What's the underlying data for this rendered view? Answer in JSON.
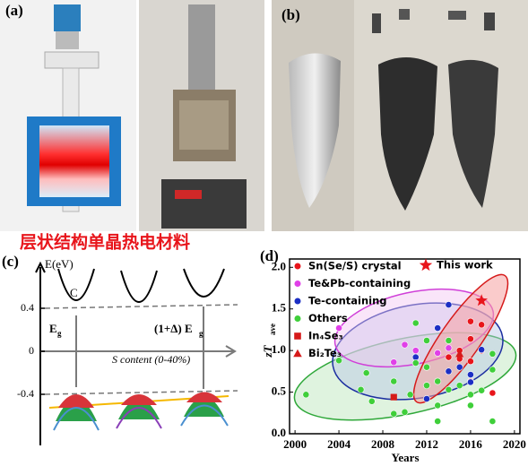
{
  "panel_a": {
    "label": "(a)"
  },
  "panel_b": {
    "label": "(b)"
  },
  "caption": "层状结构单晶热电材料",
  "panel_c": {
    "label": "(c)",
    "axis_label": "E(eV)",
    "ticks": [
      0.4,
      0,
      -0.4
    ],
    "band_label": "C",
    "gap_label": "E",
    "gap_sub": "g",
    "gap2_label": "(1+Δ) E",
    "gap2_sub": "g",
    "x_note": "S content (0-40%)"
  },
  "chart_data": {
    "type": "scatter",
    "label": "(d)",
    "x_label": "Years",
    "y_label": "zT",
    "y_label_sub": "ave",
    "xlim": [
      1999.5,
      2020.5
    ],
    "xticks": [
      2000,
      2004,
      2008,
      2012,
      2016,
      2020
    ],
    "ylim": [
      0,
      2.1
    ],
    "yticks": [
      {
        "value": 0,
        "label": "0.0"
      },
      0.5,
      {
        "value": 1,
        "label": "1.0"
      },
      1.5,
      {
        "value": 2,
        "label": "2.0"
      }
    ],
    "series": [
      {
        "name": "Sn(Se/S) crystal",
        "color": "#e8151b",
        "marker": "circle",
        "x": [
          2014,
          2015,
          2016,
          2016,
          2017,
          2018,
          2016,
          2016,
          2015,
          2017
        ],
        "values": [
          0.92,
          0.9,
          1.35,
          1.14,
          1.31,
          0.49,
          0.87,
          0.63,
          1.0,
          1.0
        ]
      },
      {
        "name": "Te&Pb-containing",
        "color": "#e040e8",
        "marker": "circle",
        "x": [
          2004,
          2013,
          2014,
          2009,
          2010,
          2011
        ],
        "values": [
          1.27,
          0.97,
          1.03,
          0.86,
          1.07,
          1.0
        ]
      },
      {
        "name": "Te-containing",
        "color": "#1c2fc4",
        "marker": "circle",
        "x": [
          2012,
          2011,
          2013,
          2014,
          2014,
          2015,
          2016,
          2017,
          2016
        ],
        "values": [
          0.42,
          0.92,
          1.27,
          1.55,
          0.75,
          0.8,
          0.62,
          1.01,
          0.71
        ]
      },
      {
        "name": "Others",
        "color": "#3fcf3a",
        "marker": "circle",
        "x": [
          2001,
          2004,
          2006,
          2006.5,
          2007,
          2009,
          2009,
          2010,
          2010.5,
          2011,
          2011,
          2012,
          2012,
          2012,
          2013,
          2013,
          2013,
          2014,
          2014,
          2015,
          2016,
          2016,
          2017,
          2018,
          2018,
          2018
        ],
        "values": [
          0.47,
          0.88,
          0.53,
          0.73,
          0.39,
          0.63,
          0.24,
          0.26,
          0.47,
          0.85,
          1.33,
          0.58,
          0.8,
          1.12,
          0.63,
          0.34,
          0.15,
          0.53,
          1.12,
          0.58,
          0.34,
          0.47,
          0.52,
          0.15,
          0.96,
          0.77
        ]
      },
      {
        "name": "In₄Se₃",
        "color": "#d61a1a",
        "marker": "square",
        "x": [
          2009
        ],
        "values": [
          0.44
        ]
      },
      {
        "name": "Bi₂Te₃",
        "color": "#d61a1a",
        "marker": "triangle",
        "x": [
          2015
        ],
        "values": [
          0.96
        ]
      },
      {
        "name": "This work",
        "color": "#e8151b",
        "marker": "star",
        "x": [
          2017
        ],
        "values": [
          1.6
        ]
      }
    ]
  }
}
